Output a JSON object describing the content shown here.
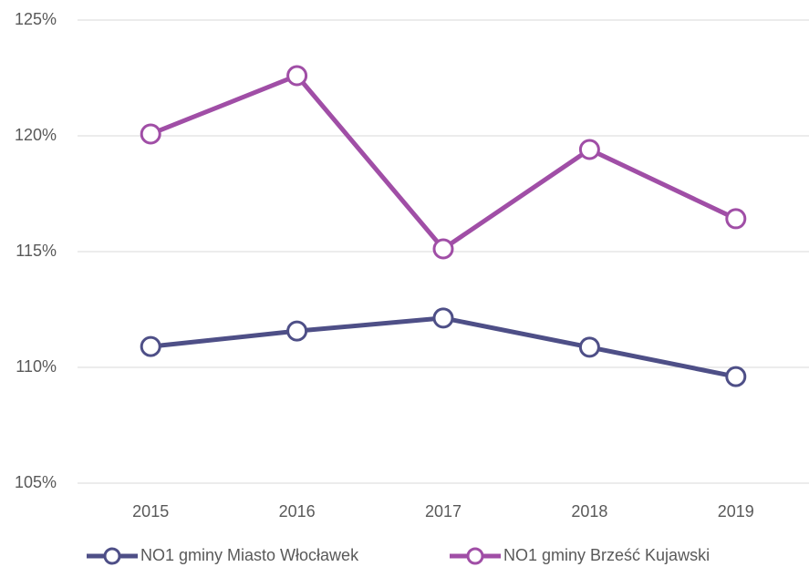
{
  "chart_data": {
    "type": "line",
    "categories": [
      "2015",
      "2016",
      "2017",
      "2018",
      "2019"
    ],
    "series": [
      {
        "name": "NO1 gminy Miasto Włocławek",
        "color": "#4e4f87",
        "values": [
          110.9,
          111.57,
          112.13,
          110.87,
          109.6
        ]
      },
      {
        "name": "NO1 gminy Brześć Kujawski",
        "color": "#a04ea6",
        "values": [
          120.08,
          122.6,
          115.12,
          119.41,
          116.42
        ]
      }
    ],
    "ylim": [
      105,
      125
    ],
    "yticks": [
      {
        "value": 105,
        "label": "105%"
      },
      {
        "value": 110,
        "label": "110%"
      },
      {
        "value": 115,
        "label": "115%"
      },
      {
        "value": 120,
        "label": "120%"
      },
      {
        "value": 125,
        "label": "125%"
      }
    ],
    "grid": true,
    "legend": "bottom"
  }
}
